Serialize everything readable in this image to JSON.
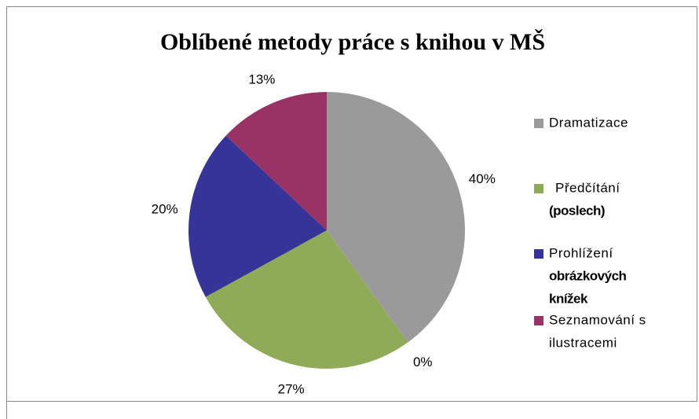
{
  "chart_data": {
    "type": "pie",
    "title": "Oblíbené metody práce s knihou v MŠ",
    "categories": [
      [
        "Dramatizace"
      ],
      null,
      [
        "Předčítání",
        "(poslech)"
      ],
      [
        "Prohlížení",
        "obrázkových",
        "knížek"
      ],
      [
        "Seznamování s",
        "ilustracemi"
      ]
    ],
    "values": [
      40,
      0,
      27,
      20,
      13
    ],
    "value_labels": [
      "40%",
      "0%",
      "27%",
      "20%",
      "13%"
    ],
    "colors": [
      "#9a9a9a",
      null,
      "#8fab57",
      "#353599",
      "#993363"
    ],
    "legend": "right"
  }
}
